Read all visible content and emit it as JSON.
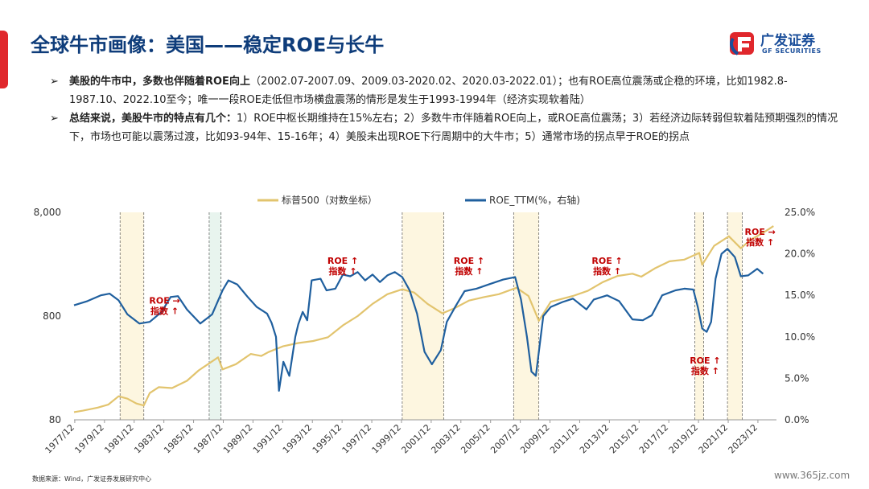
{
  "header": {
    "title": "全球牛市画像：美国——稳定ROE与长牛",
    "logo_cn": "广发证券",
    "logo_en": "GF SECURITIES"
  },
  "bullets": [
    {
      "marker": "➢",
      "bold": "美股的牛市中，多数也伴随着ROE向上",
      "text": "（2002.07-2007.09、2009.03-2020.02、2020.03-2022.01）；也有ROE高位震荡或企稳的环境，比如1982.8-1987.10、2022.10至今；唯一一段ROE走低但市场横盘震荡的情形是发生于1993-1994年（经济实现软着陆）"
    },
    {
      "marker": "➢",
      "bold": "总结来说，美股牛市的特点有几个：",
      "text": "1）ROE中枢长期维持在15%左右；2）多数牛市伴随着ROE向上，或ROE高位震荡；3）若经济边际转弱但软着陆预期强烈的情况下，市场也可能以震荡过渡，比如93-94年、15-16年；4）美股未出现ROE下行周期中的大牛市；5）通常市场的拐点早于ROE的拐点"
    }
  ],
  "chart_data": {
    "type": "line",
    "legend": [
      "标普500（对数坐标）",
      "ROE_TTM(%，右轴)"
    ],
    "colors": {
      "sp500": "#e2c46e",
      "roe": "#1f5f9e",
      "annotation": "#c00000",
      "band": "#fdf6e0",
      "band_alt": "#e8f4ee"
    },
    "x_ticks": [
      "1977/12",
      "1979/12",
      "1981/12",
      "1983/12",
      "1985/12",
      "1987/12",
      "1989/12",
      "1991/12",
      "1993/12",
      "1995/12",
      "1997/12",
      "1999/12",
      "2001/12",
      "2003/12",
      "2005/12",
      "2007/12",
      "2009/12",
      "2011/12",
      "2013/12",
      "2015/12",
      "2017/12",
      "2019/12",
      "2021/12",
      "2023/12"
    ],
    "x_range": [
      1977.9,
      2025.2
    ],
    "y_left": {
      "scale": "log",
      "ticks": [
        "8,000",
        "800",
        "80"
      ],
      "tick_values": [
        8000,
        800,
        80
      ],
      "range": [
        80,
        8000
      ]
    },
    "y_right": {
      "ticks": [
        "25.0%",
        "20.0%",
        "15.0%",
        "10.0%",
        "5.0%",
        "0.0%"
      ],
      "tick_values": [
        25,
        20,
        15,
        10,
        5,
        0
      ],
      "range": [
        0,
        25
      ]
    },
    "shaded_periods": [
      {
        "start": 1981.0,
        "end": 1982.6,
        "style": "band"
      },
      {
        "start": 1987.0,
        "end": 1987.8,
        "style": "band_alt"
      },
      {
        "start": 2000.0,
        "end": 2002.8,
        "style": "band"
      },
      {
        "start": 2007.5,
        "end": 2009.2,
        "style": "band"
      },
      {
        "start": 2019.7,
        "end": 2020.3,
        "style": "band"
      },
      {
        "start": 2021.9,
        "end": 2022.9,
        "style": "band"
      }
    ],
    "dashed_lines": [
      1981.0,
      1982.6,
      1987.0,
      1987.8,
      2000.0,
      2002.8,
      2007.5,
      2009.2,
      2019.7,
      2020.3,
      2021.9,
      2022.9
    ],
    "annotations": [
      {
        "line1": "ROE →",
        "line2": "指数 ↑",
        "x": 1984.0,
        "y_pct": 14.0
      },
      {
        "line1": "ROE ↑",
        "line2": "指数 ↑",
        "x": 1996.0,
        "y_pct": 18.8
      },
      {
        "line1": "ROE ↑",
        "line2": "指数 ↑",
        "x": 2004.5,
        "y_pct": 18.8
      },
      {
        "line1": "ROE ↑",
        "line2": "指数 ↑",
        "x": 2013.8,
        "y_pct": 18.8
      },
      {
        "line1": "ROE ↑",
        "line2": "指数 ↑",
        "x": 2020.4,
        "y_pct": 6.8
      },
      {
        "line1": "ROE →",
        "line2": "指数 ↑",
        "x": 2024.1,
        "y_pct": 22.3
      }
    ],
    "series": [
      {
        "name": "标普500（对数坐标）",
        "axis": "left",
        "points": [
          [
            1977.9,
            95
          ],
          [
            1978.5,
            98
          ],
          [
            1979.5,
            105
          ],
          [
            1980.2,
            112
          ],
          [
            1980.9,
            135
          ],
          [
            1981.5,
            128
          ],
          [
            1982.1,
            115
          ],
          [
            1982.6,
            110
          ],
          [
            1983.0,
            145
          ],
          [
            1983.6,
            165
          ],
          [
            1984.5,
            162
          ],
          [
            1985.5,
            190
          ],
          [
            1986.3,
            240
          ],
          [
            1987.6,
            320
          ],
          [
            1987.9,
            245
          ],
          [
            1988.8,
            275
          ],
          [
            1989.8,
            345
          ],
          [
            1990.5,
            330
          ],
          [
            1991.0,
            360
          ],
          [
            1992.0,
            410
          ],
          [
            1993.0,
            440
          ],
          [
            1994.0,
            460
          ],
          [
            1995.0,
            500
          ],
          [
            1996.0,
            650
          ],
          [
            1997.0,
            800
          ],
          [
            1998.0,
            1050
          ],
          [
            1999.0,
            1300
          ],
          [
            2000.0,
            1450
          ],
          [
            2000.8,
            1350
          ],
          [
            2001.7,
            1050
          ],
          [
            2002.7,
            850
          ],
          [
            2003.5,
            950
          ],
          [
            2004.5,
            1130
          ],
          [
            2005.5,
            1220
          ],
          [
            2006.5,
            1300
          ],
          [
            2007.7,
            1500
          ],
          [
            2008.5,
            1250
          ],
          [
            2009.2,
            720
          ],
          [
            2010.0,
            1100
          ],
          [
            2011.5,
            1250
          ],
          [
            2012.5,
            1400
          ],
          [
            2013.5,
            1700
          ],
          [
            2014.5,
            1950
          ],
          [
            2015.5,
            2050
          ],
          [
            2016.1,
            1920
          ],
          [
            2017.0,
            2300
          ],
          [
            2018.0,
            2700
          ],
          [
            2019.0,
            2800
          ],
          [
            2020.0,
            3250
          ],
          [
            2020.2,
            2500
          ],
          [
            2021.0,
            3800
          ],
          [
            2022.0,
            4700
          ],
          [
            2022.8,
            3600
          ],
          [
            2023.5,
            4400
          ],
          [
            2024.0,
            4800
          ],
          [
            2024.5,
            5300
          ],
          [
            2025.0,
            5900
          ]
        ]
      },
      {
        "name": "ROE_TTM(%，右轴)",
        "axis": "right",
        "points": [
          [
            1977.9,
            13.8
          ],
          [
            1978.8,
            14.3
          ],
          [
            1979.7,
            15.0
          ],
          [
            1980.3,
            15.2
          ],
          [
            1980.9,
            14.4
          ],
          [
            1981.5,
            12.7
          ],
          [
            1982.3,
            11.6
          ],
          [
            1983.0,
            11.8
          ],
          [
            1983.8,
            13.0
          ],
          [
            1984.4,
            14.8
          ],
          [
            1984.9,
            14.9
          ],
          [
            1985.5,
            13.3
          ],
          [
            1986.4,
            11.6
          ],
          [
            1987.2,
            12.7
          ],
          [
            1987.9,
            15.6
          ],
          [
            1988.3,
            16.8
          ],
          [
            1988.9,
            16.3
          ],
          [
            1989.6,
            14.8
          ],
          [
            1990.2,
            13.6
          ],
          [
            1990.9,
            12.8
          ],
          [
            1991.2,
            11.7
          ],
          [
            1991.5,
            10.0
          ],
          [
            1991.7,
            3.5
          ],
          [
            1992.0,
            7.0
          ],
          [
            1992.4,
            5.3
          ],
          [
            1992.8,
            10.0
          ],
          [
            1993.0,
            11.5
          ],
          [
            1993.3,
            13.0
          ],
          [
            1993.6,
            12.0
          ],
          [
            1993.9,
            16.8
          ],
          [
            1994.5,
            17.0
          ],
          [
            1994.9,
            15.6
          ],
          [
            1995.5,
            15.8
          ],
          [
            1996.0,
            17.5
          ],
          [
            1996.5,
            17.3
          ],
          [
            1997.0,
            17.8
          ],
          [
            1997.5,
            16.8
          ],
          [
            1998.0,
            17.5
          ],
          [
            1998.5,
            16.6
          ],
          [
            1999.0,
            17.4
          ],
          [
            1999.5,
            17.8
          ],
          [
            2000.0,
            17.2
          ],
          [
            2000.5,
            15.6
          ],
          [
            2001.0,
            12.8
          ],
          [
            2001.5,
            8.2
          ],
          [
            2002.0,
            6.7
          ],
          [
            2002.6,
            8.4
          ],
          [
            2003.0,
            11.8
          ],
          [
            2003.6,
            13.7
          ],
          [
            2004.2,
            15.5
          ],
          [
            2005.0,
            15.8
          ],
          [
            2005.8,
            16.3
          ],
          [
            2006.8,
            16.9
          ],
          [
            2007.6,
            17.2
          ],
          [
            2008.0,
            14.5
          ],
          [
            2008.4,
            10.0
          ],
          [
            2008.7,
            5.8
          ],
          [
            2009.0,
            5.3
          ],
          [
            2009.5,
            12.5
          ],
          [
            2010.0,
            13.6
          ],
          [
            2010.8,
            14.2
          ],
          [
            2011.5,
            14.6
          ],
          [
            2012.4,
            13.3
          ],
          [
            2012.9,
            14.5
          ],
          [
            2013.8,
            15.0
          ],
          [
            2014.6,
            14.3
          ],
          [
            2015.5,
            12.1
          ],
          [
            2016.2,
            12.0
          ],
          [
            2016.8,
            12.6
          ],
          [
            2017.5,
            15.0
          ],
          [
            2018.4,
            15.6
          ],
          [
            2019.0,
            15.8
          ],
          [
            2019.6,
            15.7
          ],
          [
            2019.9,
            13.6
          ],
          [
            2020.2,
            11.0
          ],
          [
            2020.5,
            10.6
          ],
          [
            2020.8,
            11.8
          ],
          [
            2021.1,
            17.0
          ],
          [
            2021.5,
            20.0
          ],
          [
            2021.9,
            20.6
          ],
          [
            2022.4,
            19.6
          ],
          [
            2022.8,
            17.3
          ],
          [
            2023.3,
            17.4
          ],
          [
            2023.9,
            18.2
          ],
          [
            2024.3,
            17.6
          ]
        ]
      }
    ]
  },
  "footer": {
    "source": "数据来源：Wind，广发证券发展研究中心",
    "watermark": "www.365jz.com"
  }
}
